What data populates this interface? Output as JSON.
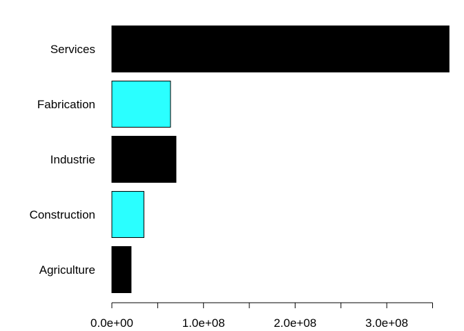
{
  "chart_data": {
    "type": "bar",
    "orientation": "horizontal",
    "categories": [
      "Agriculture",
      "Construction",
      "Industrie",
      "Fabrication",
      "Services"
    ],
    "values": [
      21000000,
      35000000,
      70000000,
      64000000,
      368000000
    ],
    "bar_colors": [
      "#000000",
      "#2affff",
      "#000000",
      "#2affff",
      "#000000"
    ],
    "xlim": [
      0,
      350000000
    ],
    "x_ticks": [
      0,
      50000000,
      100000000,
      150000000,
      200000000,
      250000000,
      300000000,
      350000000
    ],
    "x_tick_labels": [
      {
        "value": 0,
        "label": "0.0e+00"
      },
      {
        "value": 100000000,
        "label": "1.0e+08"
      },
      {
        "value": 200000000,
        "label": "2.0e+08"
      },
      {
        "value": 300000000,
        "label": "3.0e+08"
      }
    ],
    "title": "",
    "xlabel": "",
    "ylabel": "",
    "grid": false,
    "legend": "none"
  }
}
